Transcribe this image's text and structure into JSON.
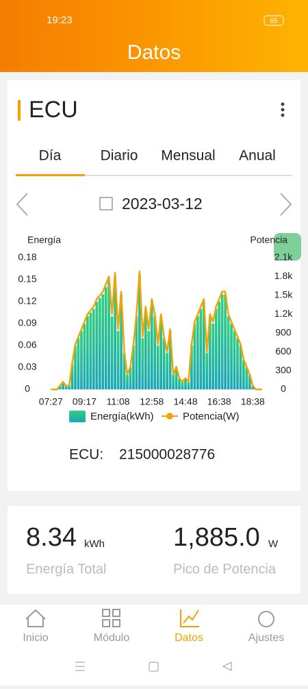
{
  "screen": {
    "status_time": "19:23",
    "battery": "65",
    "header_title": "Datos",
    "card_title": "ECU",
    "tabs": [
      "Día",
      "Diario",
      "Mensual",
      "Anual"
    ],
    "date": "2023-03-12",
    "ecu_label": "ECU:",
    "ecu_id": "215000028776",
    "energy_value": "8.34",
    "energy_unit": "kWh",
    "energy_label": "Energía Total",
    "peak_value": "1,885.0",
    "peak_unit": "W",
    "peak_label": "Pico de Potencia",
    "nav": [
      "Inicio",
      "Módulo",
      "Datos",
      "Ajustes"
    ]
  },
  "chart_data": {
    "type": "bar-line",
    "y_label": "Energía",
    "y2_label": "Potencia",
    "categories": [
      "07:27",
      null,
      null,
      null,
      null,
      null,
      null,
      null,
      null,
      null,
      null,
      "09:17",
      null,
      null,
      null,
      null,
      null,
      null,
      null,
      null,
      null,
      null,
      "11:08",
      null,
      null,
      null,
      null,
      null,
      null,
      null,
      null,
      null,
      null,
      "12:58",
      null,
      null,
      null,
      null,
      null,
      null,
      null,
      null,
      null,
      null,
      "14:48",
      null,
      null,
      null,
      null,
      null,
      null,
      null,
      null,
      null,
      null,
      "16:38",
      null,
      null,
      null,
      null,
      null,
      null,
      null,
      null,
      null,
      null,
      "18:38",
      null,
      null,
      null
    ],
    "series": [
      {
        "name": "Energía(kWh)",
        "type": "bar",
        "color": "#1fbf9a",
        "values": [
          0,
          0,
          0,
          0.005,
          0.01,
          0.005,
          0.005,
          0.035,
          0.06,
          0.07,
          0.08,
          0.09,
          0.1,
          0.105,
          0.11,
          0.12,
          0.125,
          0.13,
          0.14,
          0.15,
          0.1,
          0.155,
          0.08,
          0.13,
          0.05,
          0.02,
          0.03,
          0.06,
          0.1,
          0.157,
          0.07,
          0.11,
          0.08,
          0.12,
          0.1,
          0.06,
          0.1,
          0.07,
          0.05,
          0.08,
          0.02,
          0.03,
          0.015,
          0.01,
          0.015,
          0.01,
          0.06,
          0.09,
          0.1,
          0.11,
          0.12,
          0.05,
          0.1,
          0.09,
          0.11,
          0.12,
          0.13,
          0.13,
          0.1,
          0.09,
          0.08,
          0.07,
          0.06,
          0.04,
          0.03,
          0.02,
          0.005,
          0,
          0,
          0
        ]
      },
      {
        "name": "Potencia(W)",
        "type": "line",
        "axis": "y2",
        "color": "#f0a30a",
        "values": [
          0,
          0,
          0,
          60,
          120,
          60,
          60,
          420,
          720,
          840,
          960,
          1080,
          1200,
          1260,
          1320,
          1440,
          1500,
          1560,
          1680,
          1800,
          1200,
          1860,
          960,
          1560,
          600,
          240,
          360,
          720,
          1200,
          1885,
          840,
          1320,
          960,
          1440,
          1200,
          720,
          1200,
          840,
          600,
          960,
          240,
          360,
          180,
          120,
          180,
          120,
          720,
          1080,
          1200,
          1320,
          1440,
          600,
          1200,
          1080,
          1320,
          1440,
          1560,
          1560,
          1200,
          1080,
          960,
          840,
          720,
          480,
          360,
          240,
          60,
          0,
          0,
          0
        ]
      }
    ],
    "ylim": [
      0,
      0.18
    ],
    "yticks": [
      0,
      0.03,
      0.06,
      0.09,
      0.12,
      0.15,
      0.18
    ],
    "y2lim": [
      0,
      2100
    ],
    "y2ticks": [
      0,
      300,
      600,
      900,
      {
        "value": 1200,
        "label": "1.2k"
      },
      {
        "value": 1500,
        "label": "1.5k"
      },
      {
        "value": 1800,
        "label": "1.8k"
      },
      {
        "value": 2100,
        "label": "2.1k"
      }
    ]
  }
}
